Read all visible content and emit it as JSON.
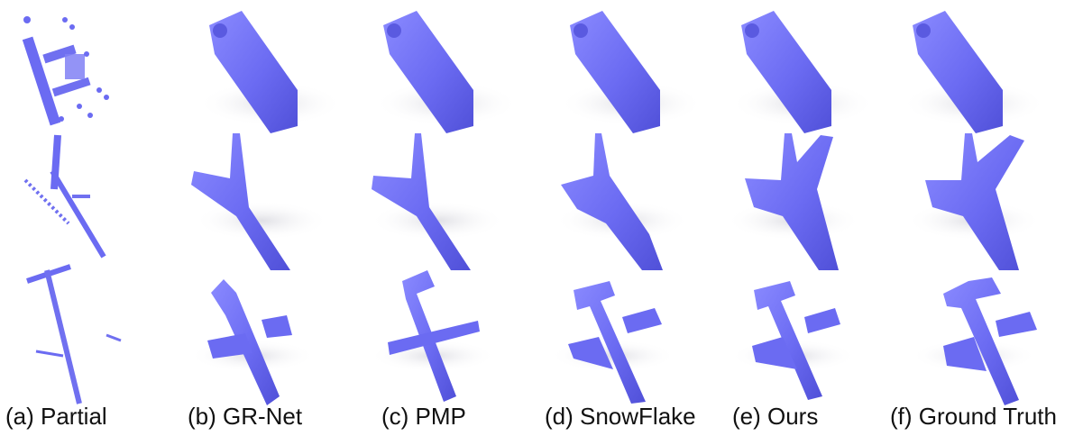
{
  "figure": {
    "columns": [
      {
        "id": "partial",
        "caption": "(a) Partial"
      },
      {
        "id": "grnet",
        "caption": "(b) GR-Net"
      },
      {
        "id": "pmp",
        "caption": "(c) PMP"
      },
      {
        "id": "snowflake",
        "caption": "(d) SnowFlake"
      },
      {
        "id": "ours",
        "caption": "(e) Ours"
      },
      {
        "id": "gt",
        "caption": "(f) Ground Truth"
      }
    ],
    "rows": [
      {
        "id": "car"
      },
      {
        "id": "plane-wide"
      },
      {
        "id": "plane-long"
      }
    ],
    "colors": {
      "point": "#7070f0",
      "shade": "#4a4ad0",
      "light": "#a8a8ff",
      "shadow": "#e6e6ea"
    }
  }
}
